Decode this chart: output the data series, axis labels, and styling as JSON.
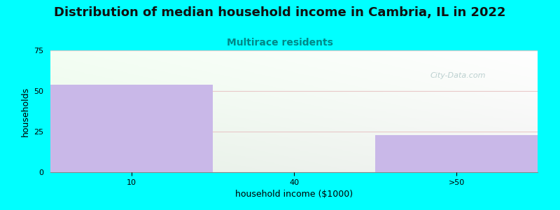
{
  "title": "Distribution of median household income in Cambria, IL in 2022",
  "subtitle": "Multirace residents",
  "xlabel": "household income ($1000)",
  "ylabel": "households",
  "background_color": "#00FFFF",
  "bar_color": "#c9b8e8",
  "bar_edge_color": "#c9b8e8",
  "categories": [
    "10",
    "40",
    ">50"
  ],
  "values": [
    54,
    0,
    23
  ],
  "ylim": [
    0,
    75
  ],
  "yticks": [
    0,
    25,
    50,
    75
  ],
  "title_fontsize": 13,
  "subtitle_fontsize": 10,
  "subtitle_color": "#008888",
  "axis_label_fontsize": 9,
  "tick_fontsize": 8,
  "watermark_text": "City-Data.com",
  "watermark_color": "#b0c8c8",
  "grid_color": "#e8c8c8",
  "plot_bg_color": "#f0fff0"
}
